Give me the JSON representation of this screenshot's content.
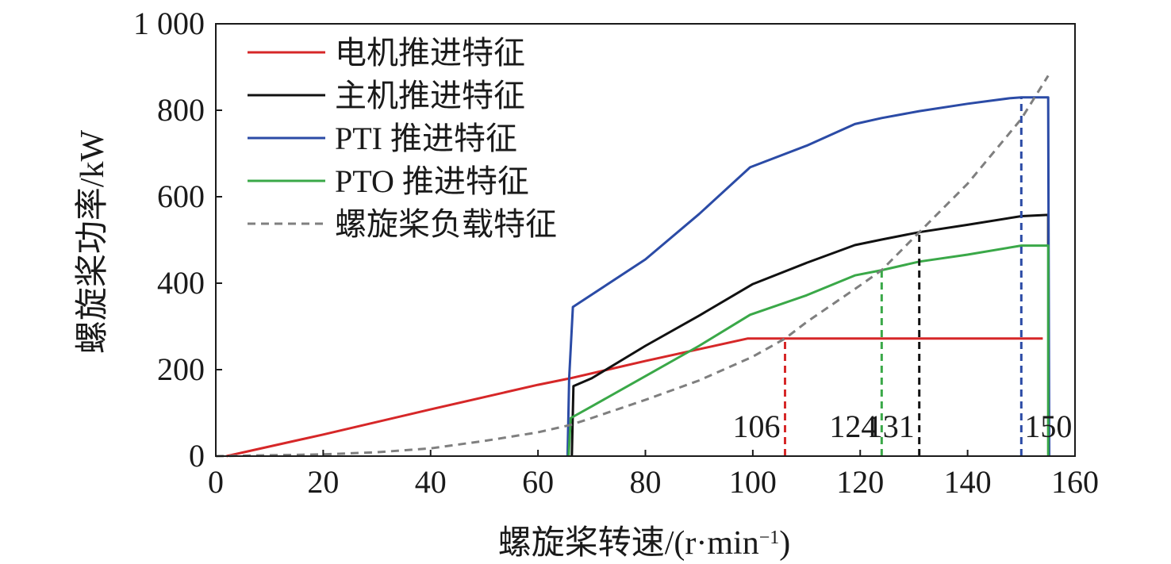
{
  "chart_data": {
    "type": "line",
    "xlabel": "螺旋桨转速/(r·min",
    "xlabel_sup": "−1",
    "xlabel_close": ")",
    "ylabel": "螺旋桨功率/kW",
    "xlim": [
      0,
      160
    ],
    "ylim": [
      0,
      1000
    ],
    "x_ticks": [
      0,
      20,
      40,
      60,
      80,
      100,
      120,
      140,
      160
    ],
    "x_tick_labels": [
      "0",
      "20",
      "40",
      "60",
      "80",
      "100",
      "120",
      "140",
      "160"
    ],
    "y_ticks": [
      0,
      200,
      400,
      600,
      800,
      1000
    ],
    "y_tick_labels": [
      "0",
      "200",
      "400",
      "600",
      "800",
      "1 000"
    ],
    "grid": false,
    "legend_position": "top-left",
    "series": [
      {
        "name": "电机推进特征",
        "color": "#d62728",
        "dash": "solid",
        "x": [
          2,
          20,
          40,
          60,
          66,
          80,
          99,
          106,
          120,
          140,
          154
        ],
        "y": [
          0,
          50,
          108,
          165,
          180,
          220,
          272,
          272,
          272,
          272,
          272
        ]
      },
      {
        "name": "主机推进特征",
        "color": "#111111",
        "dash": "solid",
        "x": [
          66.3,
          66.6,
          70,
          80,
          90,
          100,
          110,
          119,
          124,
          131,
          140,
          150,
          155,
          155
        ],
        "y": [
          0,
          162,
          180,
          255,
          325,
          398,
          447,
          488,
          501,
          518,
          535,
          555,
          558,
          488
        ]
      },
      {
        "name": "PTI 推进特征",
        "color": "#2b4ba6",
        "dash": "solid",
        "x": [
          65.5,
          65.8,
          66.5,
          80,
          90,
          99.5,
          110,
          119,
          124,
          131,
          140,
          148,
          150,
          155,
          155.2
        ],
        "y": [
          0,
          180,
          345,
          455,
          560,
          668,
          718,
          768,
          782,
          798,
          815,
          828,
          830,
          830,
          0
        ]
      },
      {
        "name": "PTO 推进特征",
        "color": "#3aa848",
        "dash": "solid",
        "x": [
          65.7,
          66.1,
          70,
          80,
          90,
          99.5,
          110,
          119,
          124,
          131,
          140,
          150,
          155,
          155
        ],
        "y": [
          0,
          88,
          115,
          185,
          255,
          327,
          372,
          418,
          430,
          450,
          466,
          487,
          487,
          0
        ]
      },
      {
        "name": "螺旋桨负载特征",
        "color": "#7f7f7f",
        "dash": "dashed",
        "x": [
          0,
          10,
          20,
          30,
          40,
          50,
          60,
          66,
          70,
          80,
          90,
          100,
          106,
          110,
          120,
          124,
          131,
          140,
          150,
          155
        ],
        "y": [
          0,
          2,
          4,
          9,
          18,
          35,
          55,
          72,
          88,
          130,
          175,
          230,
          272,
          310,
          395,
          430,
          518,
          630,
          780,
          880
        ]
      }
    ],
    "markers": [
      {
        "x": 106,
        "y": 272,
        "label": "106",
        "color": "#d62728"
      },
      {
        "x": 124,
        "y": 430,
        "label": "124",
        "color": "#3aa848"
      },
      {
        "x": 131,
        "y": 518,
        "label": "131",
        "color": "#111111"
      },
      {
        "x": 150,
        "y": 830,
        "label": "150",
        "color": "#2b4ba6"
      }
    ]
  }
}
